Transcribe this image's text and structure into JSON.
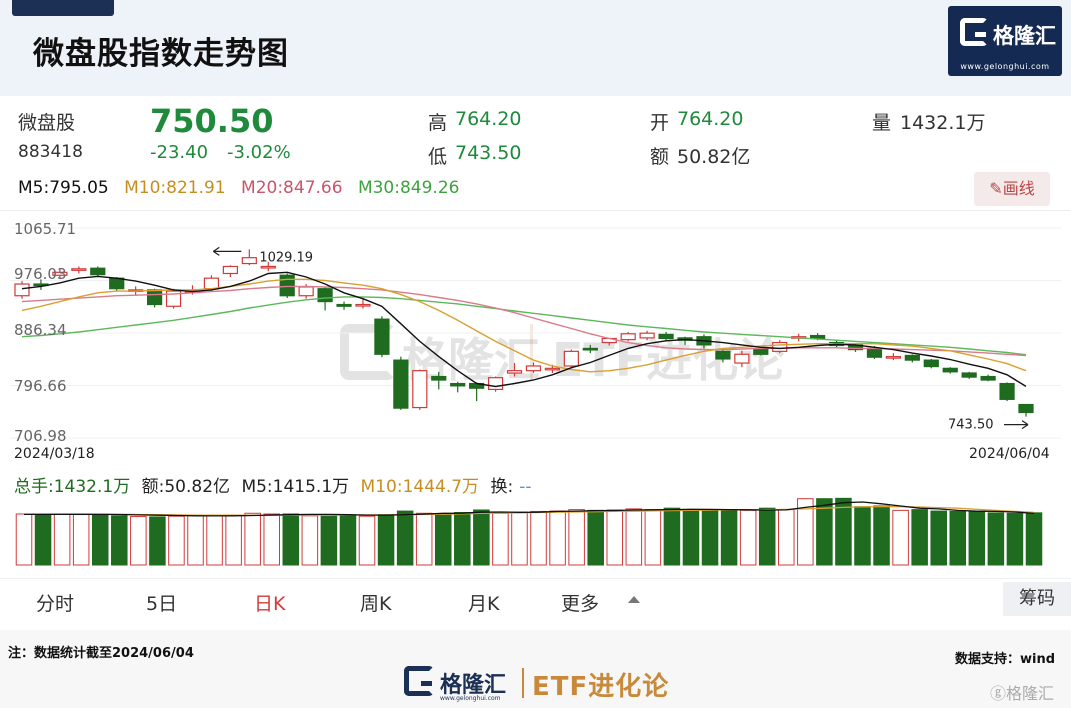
{
  "header": {
    "title": "微盘股指数走势图",
    "brand_name": "格隆汇",
    "brand_url": "www.gelonghui.com"
  },
  "quote": {
    "name": "微盘股",
    "code": "883418",
    "price": "750.50",
    "change": "-23.40",
    "change_pct": "-3.02%",
    "high_label": "高",
    "high": "764.20",
    "low_label": "低",
    "low": "743.50",
    "open_label": "开",
    "open": "764.20",
    "amount_label": "额",
    "amount": "50.82亿",
    "volume_label": "量",
    "volume": "1432.1万"
  },
  "ma": {
    "m5": "M5:795.05",
    "m10": "M10:821.91",
    "m20": "M20:847.66",
    "m30": "M30:849.26"
  },
  "draw_button": "✎画线",
  "colors": {
    "up": "#d23a3a",
    "down": "#1f6b1f",
    "m5": "#111111",
    "m10": "#d9a030",
    "m20": "#d97b8a",
    "m30": "#5db85d"
  },
  "chart_data": {
    "type": "candlestick",
    "ylim": [
      706.98,
      1065.71
    ],
    "y_ticks": [
      "1065.71",
      "976.03",
      "886.34",
      "796.66",
      "706.98"
    ],
    "start_date": "2024/03/18",
    "end_date": "2024/06/04",
    "max_annotation": "1029.19",
    "min_annotation": "743.50",
    "candles": [
      {
        "o": 950,
        "c": 970,
        "h": 975,
        "l": 945
      },
      {
        "o": 970,
        "c": 968,
        "h": 978,
        "l": 960
      },
      {
        "o": 985,
        "c": 990,
        "h": 997,
        "l": 980
      },
      {
        "o": 995,
        "c": 996,
        "h": 1000,
        "l": 988
      },
      {
        "o": 997,
        "c": 986,
        "h": 1000,
        "l": 982
      },
      {
        "o": 980,
        "c": 962,
        "h": 982,
        "l": 958
      },
      {
        "o": 960,
        "c": 960,
        "h": 966,
        "l": 950
      },
      {
        "o": 960,
        "c": 935,
        "h": 962,
        "l": 930
      },
      {
        "o": 932,
        "c": 958,
        "h": 962,
        "l": 928
      },
      {
        "o": 958,
        "c": 958,
        "h": 968,
        "l": 952
      },
      {
        "o": 962,
        "c": 980,
        "h": 985,
        "l": 958
      },
      {
        "o": 988,
        "c": 1000,
        "h": 1002,
        "l": 982
      },
      {
        "o": 1005,
        "c": 1015,
        "h": 1029.19,
        "l": 1002
      },
      {
        "o": 1000,
        "c": 1000,
        "h": 1008,
        "l": 992
      },
      {
        "o": 985,
        "c": 950,
        "h": 988,
        "l": 946
      },
      {
        "o": 950,
        "c": 965,
        "h": 970,
        "l": 945
      },
      {
        "o": 962,
        "c": 940,
        "h": 965,
        "l": 925
      },
      {
        "o": 935,
        "c": 932,
        "h": 940,
        "l": 926
      },
      {
        "o": 935,
        "c": 935,
        "h": 945,
        "l": 928
      },
      {
        "o": 910,
        "c": 850,
        "h": 915,
        "l": 845
      },
      {
        "o": 840,
        "c": 758,
        "h": 846,
        "l": 755
      },
      {
        "o": 759,
        "c": 822,
        "h": 824,
        "l": 755
      },
      {
        "o": 812,
        "c": 806,
        "h": 820,
        "l": 790
      },
      {
        "o": 800,
        "c": 796,
        "h": 803,
        "l": 785
      },
      {
        "o": 800,
        "c": 792,
        "h": 802,
        "l": 770
      },
      {
        "o": 790,
        "c": 810,
        "h": 812,
        "l": 786
      },
      {
        "o": 818,
        "c": 822,
        "h": 835,
        "l": 812
      },
      {
        "o": 822,
        "c": 830,
        "h": 836,
        "l": 818
      },
      {
        "o": 826,
        "c": 826,
        "h": 832,
        "l": 818
      },
      {
        "o": 830,
        "c": 855,
        "h": 858,
        "l": 826
      },
      {
        "o": 860,
        "c": 858,
        "h": 866,
        "l": 852
      },
      {
        "o": 870,
        "c": 877,
        "h": 878,
        "l": 865
      },
      {
        "o": 875,
        "c": 885,
        "h": 888,
        "l": 872
      },
      {
        "o": 878,
        "c": 886,
        "h": 890,
        "l": 874
      },
      {
        "o": 884,
        "c": 877,
        "h": 888,
        "l": 872
      },
      {
        "o": 878,
        "c": 874,
        "h": 880,
        "l": 866
      },
      {
        "o": 880,
        "c": 866,
        "h": 884,
        "l": 860
      },
      {
        "o": 855,
        "c": 842,
        "h": 860,
        "l": 836
      },
      {
        "o": 835,
        "c": 850,
        "h": 856,
        "l": 828
      },
      {
        "o": 858,
        "c": 850,
        "h": 862,
        "l": 848
      },
      {
        "o": 855,
        "c": 870,
        "h": 874,
        "l": 852
      },
      {
        "o": 878,
        "c": 880,
        "h": 885,
        "l": 872
      },
      {
        "o": 882,
        "c": 877,
        "h": 886,
        "l": 874
      },
      {
        "o": 870,
        "c": 865,
        "h": 874,
        "l": 862
      },
      {
        "o": 866,
        "c": 858,
        "h": 868,
        "l": 854
      },
      {
        "o": 860,
        "c": 845,
        "h": 864,
        "l": 842
      },
      {
        "o": 846,
        "c": 846,
        "h": 852,
        "l": 840
      },
      {
        "o": 848,
        "c": 840,
        "h": 850,
        "l": 836
      },
      {
        "o": 840,
        "c": 829,
        "h": 842,
        "l": 826
      },
      {
        "o": 826,
        "c": 820,
        "h": 828,
        "l": 817
      },
      {
        "o": 818,
        "c": 811,
        "h": 820,
        "l": 808
      },
      {
        "o": 812,
        "c": 806,
        "h": 815,
        "l": 804
      },
      {
        "o": 800,
        "c": 773,
        "h": 802,
        "l": 770
      },
      {
        "o": 764.2,
        "c": 750.5,
        "h": 764.2,
        "l": 743.5
      }
    ],
    "m5": [
      962,
      966,
      972,
      980,
      983,
      980,
      975,
      968,
      960,
      957,
      960,
      966,
      975,
      988,
      990,
      982,
      970,
      955,
      945,
      932,
      902,
      872,
      846,
      822,
      800,
      795,
      800,
      806,
      815,
      827,
      836,
      848,
      860,
      868,
      873,
      875,
      873,
      870,
      866,
      862,
      860,
      862,
      865,
      867,
      866,
      862,
      858,
      852,
      847,
      841,
      833,
      826,
      815,
      795.05
    ],
    "m10": [
      925,
      932,
      940,
      948,
      955,
      958,
      958,
      959,
      960,
      960,
      962,
      966,
      970,
      975,
      978,
      978,
      976,
      972,
      968,
      962,
      952,
      940,
      925,
      908,
      890,
      872,
      856,
      840,
      830,
      824,
      820,
      822,
      826,
      832,
      840,
      848,
      855,
      860,
      862,
      864,
      866,
      867,
      868,
      868,
      868,
      868,
      866,
      864,
      860,
      856,
      849,
      842,
      834,
      821.91
    ],
    "m20": [
      940,
      942,
      944,
      946,
      948,
      950,
      951,
      952,
      953,
      955,
      957,
      959,
      962,
      964,
      966,
      966,
      965,
      964,
      962,
      960,
      956,
      952,
      947,
      942,
      936,
      929,
      921,
      912,
      903,
      894,
      885,
      877,
      870,
      865,
      861,
      859,
      858,
      858,
      859,
      860,
      860,
      861,
      861,
      861,
      860,
      860,
      859,
      858,
      857,
      856,
      854,
      852,
      850,
      847.66
    ],
    "m30": [
      880,
      882,
      885,
      888,
      892,
      896,
      900,
      904,
      908,
      913,
      918,
      923,
      929,
      934,
      939,
      943,
      946,
      948,
      948,
      947,
      945,
      942,
      939,
      936,
      932,
      928,
      924,
      920,
      916,
      912,
      908,
      904,
      900,
      897,
      894,
      891,
      888,
      886,
      884,
      882,
      880,
      878,
      876,
      874,
      872,
      870,
      868,
      866,
      864,
      862,
      859,
      856,
      853,
      849.26
    ],
    "volume_labels": {
      "total": "总手:1432.1万",
      "amount": "额:50.82亿",
      "m5": "M5:1415.1万",
      "m10": "M10:1444.7万",
      "turnover": "换:"
    },
    "volume": [
      1400,
      1380,
      1390,
      1385,
      1400,
      1350,
      1330,
      1320,
      1340,
      1360,
      1350,
      1370,
      1420,
      1400,
      1400,
      1350,
      1340,
      1360,
      1340,
      1380,
      1480,
      1420,
      1390,
      1440,
      1510,
      1420,
      1450,
      1470,
      1480,
      1520,
      1500,
      1510,
      1540,
      1520,
      1560,
      1500,
      1520,
      1490,
      1500,
      1560,
      1520,
      1820,
      1820,
      1830,
      1600,
      1620,
      1500,
      1520,
      1480,
      1470,
      1480,
      1430,
      1420,
      1432.1
    ],
    "vol_m5": [
      1390,
      1390,
      1392,
      1392,
      1390,
      1385,
      1375,
      1368,
      1360,
      1350,
      1348,
      1350,
      1358,
      1372,
      1382,
      1388,
      1390,
      1380,
      1370,
      1370,
      1380,
      1396,
      1420,
      1422,
      1448,
      1454,
      1446,
      1450,
      1470,
      1480,
      1490,
      1496,
      1510,
      1516,
      1520,
      1528,
      1526,
      1522,
      1514,
      1508,
      1512,
      1580,
      1640,
      1710,
      1730,
      1680,
      1620,
      1560,
      1540,
      1498,
      1476,
      1470,
      1456,
      1415.1
    ],
    "vol_m10": [
      1400,
      1400,
      1398,
      1396,
      1394,
      1390,
      1386,
      1380,
      1376,
      1370,
      1368,
      1366,
      1365,
      1364,
      1366,
      1368,
      1370,
      1372,
      1374,
      1376,
      1380,
      1386,
      1394,
      1406,
      1416,
      1426,
      1434,
      1440,
      1448,
      1456,
      1464,
      1470,
      1478,
      1486,
      1494,
      1500,
      1508,
      1514,
      1518,
      1522,
      1526,
      1540,
      1560,
      1580,
      1596,
      1604,
      1600,
      1592,
      1576,
      1560,
      1530,
      1500,
      1470,
      1444.7
    ]
  },
  "tabs": [
    "分时",
    "5日",
    "日K",
    "周K",
    "月K",
    "更多"
  ],
  "chips_button": "筹码",
  "footer": {
    "note": "注：数据统计截至2024/06/04",
    "source": "数据支持：wind",
    "logo_name": "格隆汇",
    "logo_url": "www.gelonghui.com",
    "etf_name": "ETF进化论",
    "corner_mark": "ⓖ格隆汇"
  }
}
